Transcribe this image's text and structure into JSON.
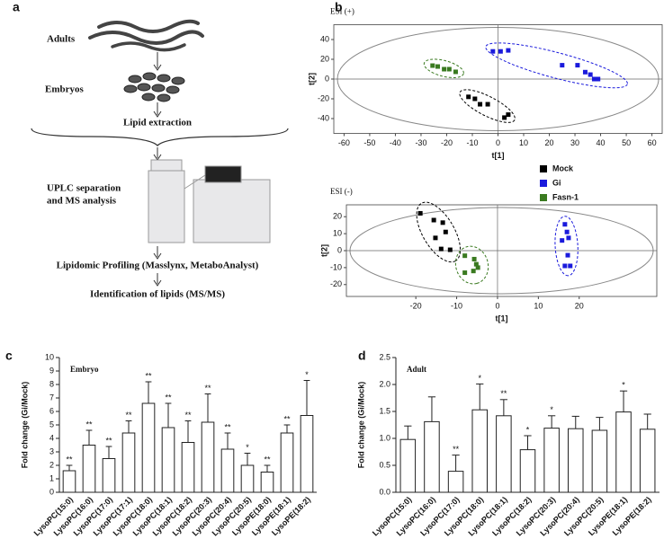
{
  "diagram": {
    "panel_label": "a",
    "adults": "Adults",
    "embryos": "Embryos",
    "extraction": "Lipid extraction",
    "uplc": [
      "UPLC separation",
      "and MS analysis"
    ],
    "profiling": "Lipidomic Profiling (Masslynx, MetaboAnalyst)",
    "identification": "Identification of lipids (MS/MS)"
  },
  "chart_data": [
    {
      "type": "scatter",
      "panel_label": "b",
      "title": "ESI (+)",
      "x_label": "t[1]",
      "y_label": "t[2]",
      "xlim": [
        -64,
        64
      ],
      "ylim": [
        -55,
        55
      ],
      "xticks": [
        -60,
        -50,
        -40,
        -30,
        -20,
        -10,
        0,
        10,
        20,
        30,
        40,
        50,
        60
      ],
      "yticks": [
        -40,
        -20,
        0,
        20,
        40
      ],
      "series": [
        {
          "color": "#000000",
          "x": [
            -11.5,
            -9,
            -7,
            -4,
            2.5,
            4
          ],
          "values": [
            -18,
            -20,
            -25.5,
            -25.5,
            -39,
            -36
          ]
        },
        {
          "color": "#1a1adc",
          "x": [
            -2,
            1,
            4,
            25,
            31,
            34,
            36,
            37.5,
            39
          ],
          "values": [
            28,
            28,
            29,
            14,
            14,
            7,
            4.5,
            0,
            0
          ]
        },
        {
          "color": "#3a7a20",
          "x": [
            -25.5,
            -23.5,
            -21,
            -19,
            -16.5
          ],
          "values": [
            13.6,
            12.7,
            10,
            10,
            7.3
          ]
        }
      ]
    },
    {
      "type": "scatter",
      "title": "ESI (-)",
      "x_label": "t[1]",
      "y_label": "t[2]",
      "xlim": [
        -37,
        39
      ],
      "ylim": [
        -27,
        27
      ],
      "xticks": [
        -20,
        -10,
        0,
        10,
        20
      ],
      "yticks": [
        -20,
        -10,
        0,
        10,
        20
      ],
      "series": [
        {
          "name": "Mock",
          "color": "#000000",
          "x": [
            -18.9,
            -15.6,
            -13.4,
            -12.7,
            -15.2,
            -13.8,
            -11.6
          ],
          "values": [
            22,
            18,
            16.5,
            11,
            7.5,
            1,
            0.5
          ]
        },
        {
          "name": "Gi",
          "color": "#1a1adc",
          "x": [
            16.5,
            17,
            17.4,
            15.8,
            17.2,
            16.5,
            17.8
          ],
          "values": [
            15.5,
            11,
            7.5,
            6,
            -2.7,
            -9,
            -9
          ]
        },
        {
          "name": "Fasn-1",
          "color": "#3a7a20",
          "x": [
            -8,
            -5.7,
            -4.8,
            -5.9,
            -8,
            -5.2
          ],
          "values": [
            -3,
            -5,
            -10,
            -12,
            -13,
            -8
          ]
        }
      ]
    },
    {
      "type": "bar",
      "panel_label": "c",
      "title": "Embryo",
      "y_label": "Fold change (Gi/Mock)",
      "categories": [
        "LysoPC(15:0)",
        "LysoPC(16:0)",
        "LysoPC(17:0)",
        "LysoPC(17:1)",
        "LysoPC(18:0)",
        "LysoPC(18:1)",
        "LysoPC(18:2)",
        "LysoPC(20:3)",
        "LysoPC(20:4)",
        "LysoPC(20:5)",
        "LysoPE(18:0)",
        "LysoPE(18:1)",
        "LysoPE(18:2)"
      ],
      "values": [
        1.6,
        3.5,
        2.5,
        4.4,
        6.6,
        4.8,
        3.7,
        5.2,
        3.2,
        2.0,
        1.5,
        4.4,
        5.7
      ],
      "errors": [
        0.4,
        1.1,
        0.9,
        0.9,
        1.6,
        1.8,
        1.6,
        2.1,
        1.2,
        0.9,
        0.5,
        0.6,
        2.6
      ],
      "significance": [
        "**",
        "**",
        "**",
        "**",
        "**",
        "**",
        "**",
        "**",
        "**",
        "*",
        "**",
        "**",
        "*"
      ],
      "ylim": [
        0,
        10
      ],
      "yticks": [
        0,
        1,
        2,
        3,
        4,
        5,
        6,
        7,
        8,
        9,
        10
      ]
    },
    {
      "type": "bar",
      "panel_label": "d",
      "title": "Adult",
      "y_label": "Fold change (Gi/Mock)",
      "categories": [
        "LysoPC(15:0)",
        "LysoPC(16:0)",
        "LysoPC(17:0)",
        "LysoPC(18:0)",
        "LysoPC(18:1)",
        "LysoPC(18:2)",
        "LysoPC(20:3)",
        "LysoPC(20:4)",
        "LysoPC(20:5)",
        "LysoPE(18:1)",
        "LysoPE(18:2)"
      ],
      "values": [
        0.98,
        1.31,
        0.39,
        1.53,
        1.42,
        0.79,
        1.19,
        1.18,
        1.15,
        1.49,
        1.17
      ],
      "errors": [
        0.25,
        0.46,
        0.3,
        0.48,
        0.3,
        0.26,
        0.23,
        0.23,
        0.24,
        0.39,
        0.28
      ],
      "significance": [
        null,
        null,
        "**",
        "*",
        "**",
        "*",
        "*",
        null,
        null,
        "*",
        null
      ],
      "ylim": [
        0,
        2.5
      ],
      "yticks": [
        {
          "value": 0,
          "label": "0.0"
        },
        0.5,
        {
          "value": 1,
          "label": "1.0"
        },
        1.5,
        {
          "value": 2,
          "label": "2.0"
        },
        2.5
      ]
    }
  ]
}
